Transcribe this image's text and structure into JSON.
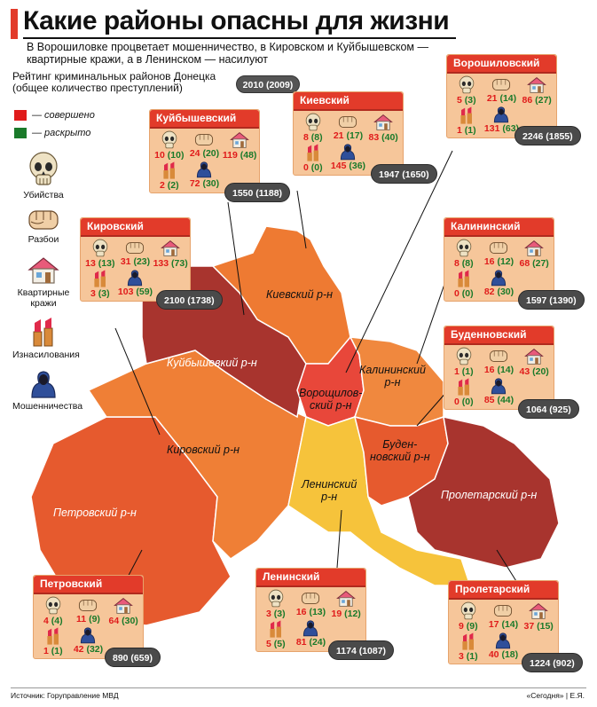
{
  "title": "Какие районы опасны для жизни",
  "subtitle": "В Ворошиловке процветает мошенничество, в Кировском и Куйбышевском — квартирные кражи, а в Ленинском — насилуют",
  "rating_label": "Рейтинг криминальных районов Донецка (общее количество преступлений)",
  "year_pill": "2010 (2009)",
  "legend": {
    "committed": {
      "label": "— совершено",
      "color": "#e01b1b"
    },
    "solved": {
      "label": "— раскрыто",
      "color": "#1a7a2a"
    }
  },
  "categories": [
    {
      "icon": "skull-icon",
      "label": "Убийства"
    },
    {
      "icon": "fist-icon",
      "label": "Разбои"
    },
    {
      "icon": "house-icon",
      "label": "Квартирные кражи"
    },
    {
      "icon": "lipstick-icon",
      "label": "Изнасилования"
    },
    {
      "icon": "hoodie-icon",
      "label": "Мошенничества"
    }
  ],
  "districts": {
    "kuibyshevsky": {
      "name": "Куйбышевский",
      "murders": "10",
      "murders_solved": "(10)",
      "robberies": "24",
      "robberies_solved": "(20)",
      "thefts": "119",
      "thefts_solved": "(48)",
      "rapes": "2",
      "rapes_solved": "(2)",
      "frauds": "72",
      "frauds_solved": "(30)",
      "total": "1550 (1188)"
    },
    "kievsky": {
      "name": "Киевский",
      "murders": "8",
      "murders_solved": "(8)",
      "robberies": "21",
      "robberies_solved": "(17)",
      "thefts": "83",
      "thefts_solved": "(40)",
      "rapes": "0",
      "rapes_solved": "(0)",
      "frauds": "145",
      "frauds_solved": "(36)",
      "total": "1947 (1650)"
    },
    "voroshilovsky": {
      "name": "Ворошиловский",
      "murders": "5",
      "murders_solved": "(3)",
      "robberies": "21",
      "robberies_solved": "(14)",
      "thefts": "86",
      "thefts_solved": "(27)",
      "rapes": "1",
      "rapes_solved": "(1)",
      "frauds": "131",
      "frauds_solved": "(63)",
      "total": "2246 (1855)"
    },
    "kirovsky": {
      "name": "Кировский",
      "murders": "13",
      "murders_solved": "(13)",
      "robberies": "31",
      "robberies_solved": "(23)",
      "thefts": "133",
      "thefts_solved": "(73)",
      "rapes": "3",
      "rapes_solved": "(3)",
      "frauds": "103",
      "frauds_solved": "(59)",
      "total": "2100 (1738)"
    },
    "kalininsky": {
      "name": "Калининский",
      "murders": "8",
      "murders_solved": "(8)",
      "robberies": "16",
      "robberies_solved": "(12)",
      "thefts": "68",
      "thefts_solved": "(27)",
      "rapes": "0",
      "rapes_solved": "(0)",
      "frauds": "82",
      "frauds_solved": "(30)",
      "total": "1597 (1390)"
    },
    "budennovsky": {
      "name": "Буденновский",
      "murders": "1",
      "murders_solved": "(1)",
      "robberies": "16",
      "robberies_solved": "(14)",
      "thefts": "43",
      "thefts_solved": "(20)",
      "rapes": "0",
      "rapes_solved": "(0)",
      "frauds": "85",
      "frauds_solved": "(44)",
      "total": "1064 (925)"
    },
    "petrovsky": {
      "name": "Петровский",
      "murders": "4",
      "murders_solved": "(4)",
      "robberies": "11",
      "robberies_solved": "(9)",
      "thefts": "64",
      "thefts_solved": "(30)",
      "rapes": "1",
      "rapes_solved": "(1)",
      "frauds": "42",
      "frauds_solved": "(32)",
      "total": "890 (659)"
    },
    "leninsky": {
      "name": "Ленинский",
      "murders": "3",
      "murders_solved": "(3)",
      "robberies": "16",
      "robberies_solved": "(13)",
      "thefts": "19",
      "thefts_solved": "(12)",
      "rapes": "5",
      "rapes_solved": "(5)",
      "frauds": "81",
      "frauds_solved": "(24)",
      "total": "1174 (1087)"
    },
    "proletarsky": {
      "name": "Пролетарский",
      "murders": "9",
      "murders_solved": "(9)",
      "robberies": "17",
      "robberies_solved": "(14)",
      "thefts": "37",
      "thefts_solved": "(15)",
      "rapes": "3",
      "rapes_solved": "(1)",
      "frauds": "40",
      "frauds_solved": "(18)",
      "total": "1224 (902)"
    }
  },
  "map_labels": {
    "kievsky": "Киевский р-н",
    "kuibyshevsky": "Куйбышевкий р-н",
    "voroshilovsky_1": "Ворощилов-",
    "voroshilovsky_2": "ский р-н",
    "kalininsky_1": "Калининский",
    "kalininsky_2": "р-н",
    "kirovsky": "Кировский р-н",
    "budennovsky_1": "Буден-",
    "budennovsky_2": "новский р-н",
    "leninsky_1": "Ленинский",
    "leninsky_2": "р-н",
    "petrovsky": "Петровский р-н",
    "proletarsky": "Пролетарский р-н"
  },
  "colors": {
    "accent": "#e23b2a",
    "dark_red": "#a8342e",
    "red_orange": "#e0502a",
    "orange": "#ee7d34",
    "light_orange": "#f39a4e",
    "yellow": "#f6c33b",
    "card_bg": "#f6c69a",
    "pill": "#4a4a4a"
  },
  "footer": {
    "source": "Источник: Горуправление МВД",
    "credit": "«Сегодня» | Е.Я."
  }
}
